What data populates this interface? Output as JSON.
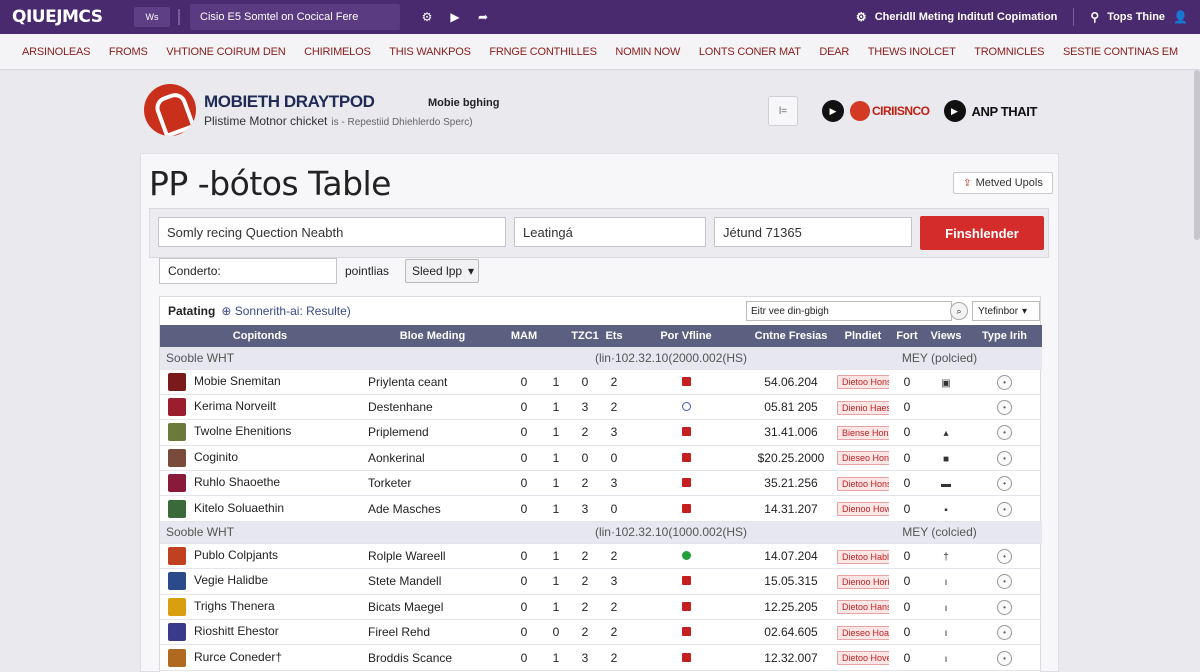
{
  "topbar": {
    "logo": "QIUEJMCS",
    "btn_label": "Ws",
    "search_text": "Cisio E5 Somtel on Cocical Fere",
    "icons": [
      "gear-icon",
      "play-icon",
      "share-icon"
    ],
    "right_label": "Cheridll Meting Inditutl Copimation",
    "right_label2": "Tops Thine"
  },
  "nav": [
    "ARSINOLEAS",
    "FROMS",
    "VHTIONE COIRUM DEN",
    "CHIRIMELOS",
    "THIS WANKPOS",
    "FRNGE CONTHILLES",
    "NOMIN NOW",
    "LONTS CONER MAT",
    "DEAR",
    "THEWS INOLCET",
    "TROMNICLES",
    "SESTIE CONTINAS EM"
  ],
  "brand": {
    "title": "MOBIETH DRAYTPOD",
    "subtitle": "Plistime Motnor chicket",
    "subtitle_small": "is - Repestiid Dhiehlerdo Sperc)",
    "tagline": "Mobie bghing"
  },
  "header_right": {
    "square_label": "l=",
    "red_text": "CIRIISNCO",
    "anp_text": "ANP THAIT"
  },
  "page": {
    "title": "PP -bótos Table",
    "upload_label": "Metved Upols"
  },
  "filters": {
    "f1": "Somly recing Quection Neabth",
    "f2": "Leatingá",
    "f3": "Jétund 71365",
    "go": "Finshlender",
    "sub_input": "Conderto:",
    "sub_label": "pointlias",
    "sub_select": "Sleed lpp"
  },
  "results": {
    "title": "Patating",
    "subtitle": "Sonnerith-ai: Resulte)",
    "search": "Eitr vee din-gbigh",
    "select": "Ytefinbor",
    "columns": [
      "Copitonds",
      "Bloe Meding",
      "MAM",
      "TZC1",
      "Ets",
      "Por Vfline",
      "Cntne Fresias",
      "Plndiet",
      "Fort",
      "Views",
      "Type Irih"
    ],
    "groups": [
      {
        "label": "Sooble WHT",
        "range": "(lin·102.32.10(2000.002(HS)",
        "extra": "MEY (polcied)",
        "rows": [
          {
            "name": "Mobie Snemitan",
            "match": "Priylenta ceant",
            "a": "0",
            "b": "1",
            "c": "0",
            "d": "2",
            "dot": "red",
            "value": "54.06.204",
            "pill": "Dietoo Hons",
            "p": "0",
            "flagcolor": "#7a1a1a",
            "fort": "▣"
          },
          {
            "name": "Kerima Norveilt",
            "match": "Destenhane",
            "a": "0",
            "b": "1",
            "c": "3",
            "d": "2",
            "dot": "blue",
            "value": "05.81 205",
            "pill": "Dienio Haes",
            "p": "0",
            "flagcolor": "#9b1e2e",
            "fort": ""
          },
          {
            "name": "Twolne Ehenitions",
            "match": "Priplemend",
            "a": "0",
            "b": "1",
            "c": "2",
            "d": "3",
            "dot": "red",
            "value": "31.41.006",
            "pill": "Biense Hona",
            "p": "0",
            "flagcolor": "#6a7a3a",
            "fort": "▴"
          },
          {
            "name": "Coginito",
            "match": "Aonkerinal",
            "a": "0",
            "b": "1",
            "c": "0",
            "d": "0",
            "dot": "red",
            "value": "$20.25.2000",
            "pill": "Dieseo Hons",
            "p": "0",
            "flagcolor": "#7a4a3a",
            "fort": "■"
          },
          {
            "name": "Ruhlo Shaoethe",
            "match": "Torketer",
            "a": "0",
            "b": "1",
            "c": "2",
            "d": "3",
            "dot": "red",
            "value": "35.21.256",
            "pill": "Dietoo Hons",
            "p": "0",
            "flagcolor": "#8a1a3a",
            "fort": "▬"
          },
          {
            "name": "Kitelo Soluaethin",
            "match": "Ade Masches",
            "a": "0",
            "b": "1",
            "c": "3",
            "d": "0",
            "dot": "red",
            "value": "14.31.207",
            "pill": "Dienoo Hows",
            "p": "0",
            "flagcolor": "#3a6a3a",
            "fort": "▪"
          }
        ]
      },
      {
        "label": "Sooble WHT",
        "range": "(lin·102.32.10(1000.002(HS)",
        "extra": "MEY (colcied)",
        "rows": [
          {
            "name": "Publo Colpjants",
            "match": "Rolple Wareell",
            "a": "0",
            "b": "1",
            "c": "2",
            "d": "2",
            "dot": "green",
            "value": "14.07.204",
            "pill": "Dietoo Hable",
            "p": "0",
            "flagcolor": "#c04020",
            "fort": "†"
          },
          {
            "name": "Vegie Halidbe",
            "match": "Stete Mandell",
            "a": "0",
            "b": "1",
            "c": "2",
            "d": "3",
            "dot": "red",
            "value": "15.05.315",
            "pill": "Dienoo Horio",
            "p": "0",
            "flagcolor": "#2a4a8a",
            "fort": "ı"
          },
          {
            "name": "Trighs Thenera",
            "match": "Bicats Maegel",
            "a": "0",
            "b": "1",
            "c": "2",
            "d": "2",
            "dot": "red",
            "value": "12.25.205",
            "pill": "Dietoo Hans",
            "p": "0",
            "flagcolor": "#d8a010",
            "fort": "ı"
          },
          {
            "name": "Rioshitt Ehestor",
            "match": "Fireel Rehd",
            "a": "0",
            "b": "0",
            "c": "2",
            "d": "2",
            "dot": "red",
            "value": "02.64.605",
            "pill": "Dieseo Hoas",
            "p": "0",
            "flagcolor": "#3a3a8a",
            "fort": "ı"
          },
          {
            "name": "Rurce Coneder†",
            "match": "Broddis Scance",
            "a": "0",
            "b": "1",
            "c": "3",
            "d": "2",
            "dot": "red",
            "value": "12.32.007",
            "pill": "Dietoo Hove",
            "p": "0",
            "flagcolor": "#b06a20",
            "fort": "ı"
          }
        ]
      }
    ]
  },
  "colors": {
    "topbar": "#4a2a6e",
    "accent_red": "#d42b2b",
    "table_header": "#5b6080"
  }
}
